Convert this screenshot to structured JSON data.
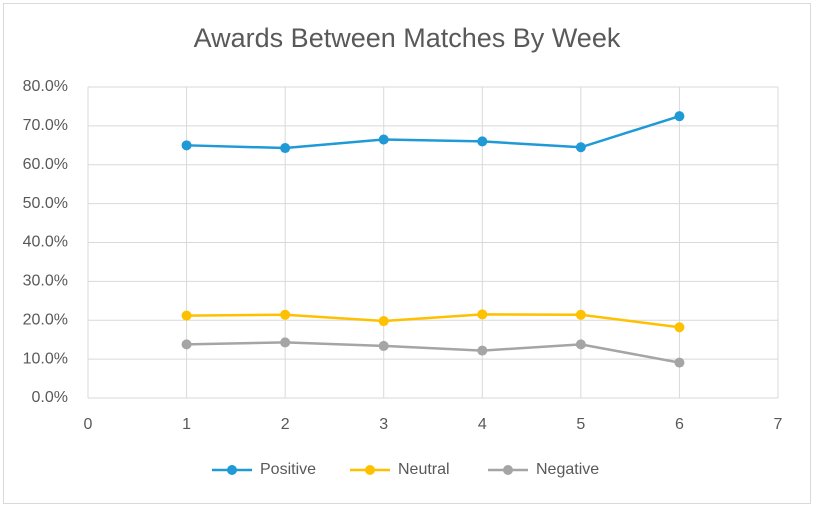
{
  "chart_data": {
    "type": "line",
    "title": "Awards Between Matches By Week",
    "x": [
      1,
      2,
      3,
      4,
      5,
      6
    ],
    "series": [
      {
        "name": "Positive",
        "color": "#1f9ad6",
        "values": [
          65.0,
          64.3,
          66.5,
          66.0,
          64.5,
          72.5
        ]
      },
      {
        "name": "Neutral",
        "color": "#ffc000",
        "values": [
          21.2,
          21.4,
          19.8,
          21.5,
          21.4,
          18.2
        ]
      },
      {
        "name": "Negative",
        "color": "#a5a5a5",
        "values": [
          13.8,
          14.3,
          13.4,
          12.2,
          13.8,
          9.1
        ]
      }
    ],
    "xlim": [
      0,
      7
    ],
    "xticks": [
      0,
      1,
      2,
      3,
      4,
      5,
      6,
      7
    ],
    "ylim": [
      0,
      80
    ],
    "yticks": [
      {
        "value": 0,
        "label": "0.0%"
      },
      {
        "value": 10,
        "label": "10.0%"
      },
      {
        "value": 20,
        "label": "20.0%"
      },
      {
        "value": 30,
        "label": "30.0%"
      },
      {
        "value": 40,
        "label": "40.0%"
      },
      {
        "value": 50,
        "label": "50.0%"
      },
      {
        "value": 60,
        "label": "60.0%"
      },
      {
        "value": 70,
        "label": "70.0%"
      },
      {
        "value": 80,
        "label": "80.0%"
      }
    ],
    "grid": true,
    "legend": "bottom"
  }
}
